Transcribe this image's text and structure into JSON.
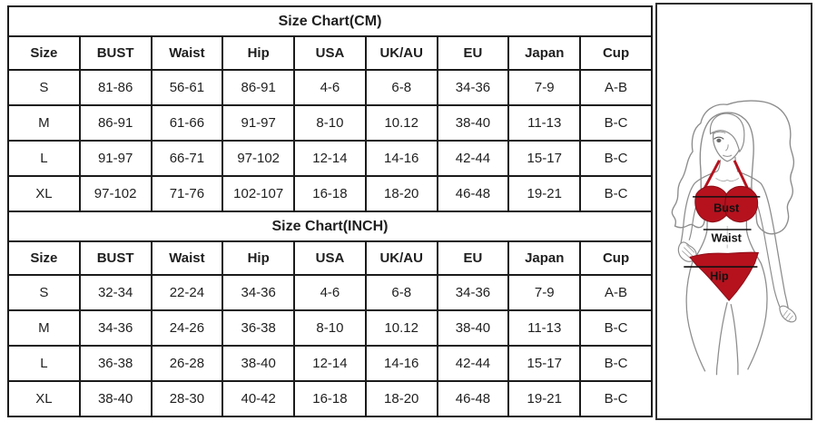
{
  "tables": [
    {
      "title": "Size Chart(CM)",
      "headers": [
        "Size",
        "BUST",
        "Waist",
        "Hip",
        "USA",
        "UK/AU",
        "EU",
        "Japan",
        "Cup"
      ],
      "rows": [
        [
          "S",
          "81-86",
          "56-61",
          "86-91",
          "4-6",
          "6-8",
          "34-36",
          "7-9",
          "A-B"
        ],
        [
          "M",
          "86-91",
          "61-66",
          "91-97",
          "8-10",
          "10.12",
          "38-40",
          "11-13",
          "B-C"
        ],
        [
          "L",
          "91-97",
          "66-71",
          "97-102",
          "12-14",
          "14-16",
          "42-44",
          "15-17",
          "B-C"
        ],
        [
          "XL",
          "97-102",
          "71-76",
          "102-107",
          "16-18",
          "18-20",
          "46-48",
          "19-21",
          "B-C"
        ]
      ]
    },
    {
      "title": "Size Chart(INCH)",
      "headers": [
        "Size",
        "BUST",
        "Waist",
        "Hip",
        "USA",
        "UK/AU",
        "EU",
        "Japan",
        "Cup"
      ],
      "rows": [
        [
          "S",
          "32-34",
          "22-24",
          "34-36",
          "4-6",
          "6-8",
          "34-36",
          "7-9",
          "A-B"
        ],
        [
          "M",
          "34-36",
          "24-26",
          "36-38",
          "8-10",
          "10.12",
          "38-40",
          "11-13",
          "B-C"
        ],
        [
          "L",
          "36-38",
          "26-28",
          "38-40",
          "12-14",
          "14-16",
          "42-44",
          "15-17",
          "B-C"
        ],
        [
          "XL",
          "38-40",
          "28-30",
          "40-42",
          "16-18",
          "18-20",
          "46-48",
          "19-21",
          "B-C"
        ]
      ]
    }
  ],
  "figure": {
    "labels": {
      "bust": "Bust",
      "waist": "Waist",
      "hip": "Hip"
    },
    "colors": {
      "bikini_red": "#b5121e",
      "line_art_gray": "#8d8d8d",
      "measure_line_black": "#111111",
      "table_border_black": "#1b1b1b"
    }
  }
}
